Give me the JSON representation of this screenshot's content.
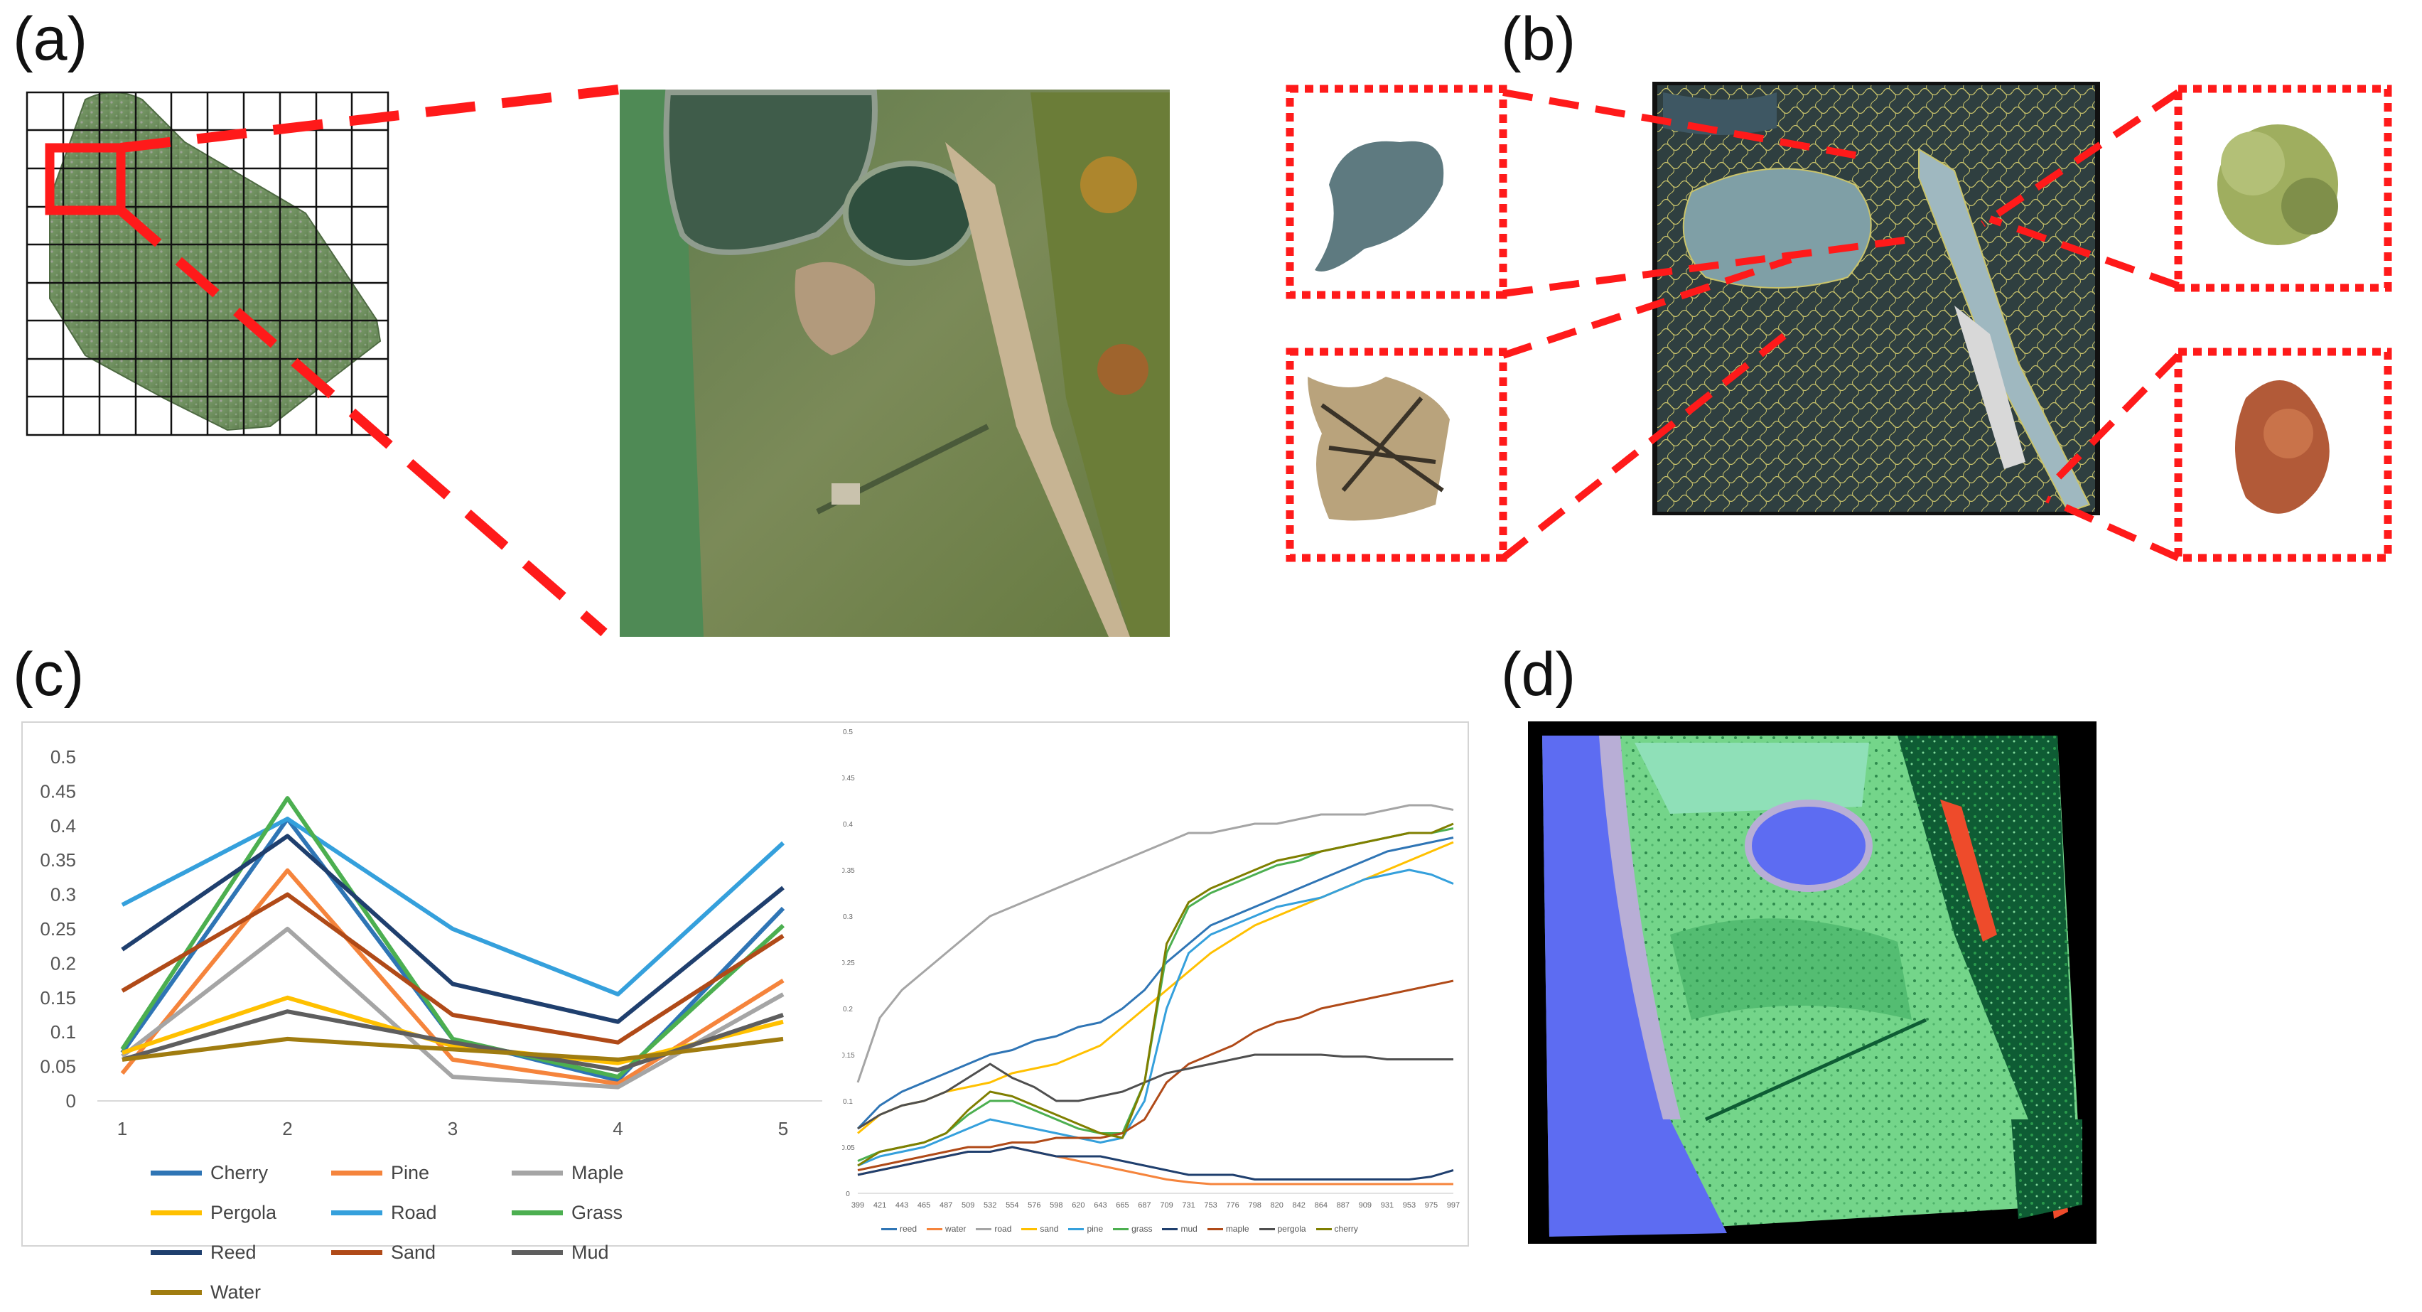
{
  "panels": {
    "a": {
      "label": "(a)"
    },
    "b": {
      "label": "(b)"
    },
    "c": {
      "label": "(c)"
    },
    "d": {
      "label": "(d)"
    }
  },
  "colors": {
    "callout_red": "#ff1a1a",
    "water_blue": "#5d6cf2",
    "grass_light": "#74d58a",
    "grass_dark": "#0e5c34",
    "road_lavender": "#b8aed6",
    "sand_orange": "#ee4b2b"
  },
  "chart_data": [
    {
      "type": "line",
      "categories": [
        "1",
        "2",
        "3",
        "4",
        "5"
      ],
      "ylim": [
        0,
        0.5
      ],
      "yticks": [
        "0",
        "0.05",
        "0.1",
        "0.15",
        "0.2",
        "0.25",
        "0.3",
        "0.35",
        "0.4",
        "0.45",
        "0.5"
      ],
      "legend_position": "bottom",
      "series": [
        {
          "name": "Cherry",
          "color": "#2f75b5",
          "values": [
            0.07,
            0.41,
            0.09,
            0.03,
            0.28
          ]
        },
        {
          "name": "Pine",
          "color": "#f5843c",
          "values": [
            0.04,
            0.335,
            0.06,
            0.025,
            0.175
          ]
        },
        {
          "name": "Maple",
          "color": "#a5a5a5",
          "values": [
            0.065,
            0.25,
            0.035,
            0.02,
            0.155
          ]
        },
        {
          "name": "Pergola",
          "color": "#ffc000",
          "values": [
            0.07,
            0.15,
            0.08,
            0.055,
            0.115
          ]
        },
        {
          "name": "Road",
          "color": "#35a0dc",
          "values": [
            0.285,
            0.41,
            0.25,
            0.155,
            0.375
          ]
        },
        {
          "name": "Grass",
          "color": "#4caf50",
          "values": [
            0.075,
            0.44,
            0.09,
            0.035,
            0.255
          ]
        },
        {
          "name": "Reed",
          "color": "#1f3f6e",
          "values": [
            0.22,
            0.385,
            0.17,
            0.115,
            0.31
          ]
        },
        {
          "name": "Sand",
          "color": "#b04a18",
          "values": [
            0.16,
            0.3,
            0.125,
            0.085,
            0.24
          ]
        },
        {
          "name": "Mud",
          "color": "#5e5e5e",
          "values": [
            0.06,
            0.13,
            0.085,
            0.045,
            0.125
          ]
        },
        {
          "name": "Water",
          "color": "#a07c10",
          "values": [
            0.06,
            0.09,
            0.075,
            0.06,
            0.09
          ]
        }
      ]
    },
    {
      "type": "line",
      "x": [
        "399",
        "421",
        "443",
        "465",
        "487",
        "509",
        "532",
        "554",
        "576",
        "598",
        "620",
        "643",
        "665",
        "687",
        "709",
        "731",
        "753",
        "776",
        "798",
        "820",
        "842",
        "864",
        "887",
        "909",
        "931",
        "953",
        "975",
        "997"
      ],
      "ylim": [
        0,
        0.5
      ],
      "yticks": [
        "0",
        "0.05",
        "0.1",
        "0.15",
        "0.2",
        "0.25",
        "0.3",
        "0.35",
        "0.4",
        "0.45",
        "0.5"
      ],
      "legend_position": "bottom",
      "series": [
        {
          "name": "reed",
          "color": "#2f75b5",
          "values": [
            0.07,
            0.095,
            0.11,
            0.12,
            0.13,
            0.14,
            0.15,
            0.155,
            0.165,
            0.17,
            0.18,
            0.185,
            0.2,
            0.22,
            0.25,
            0.27,
            0.29,
            0.3,
            0.31,
            0.32,
            0.33,
            0.34,
            0.35,
            0.36,
            0.37,
            0.375,
            0.38,
            0.385
          ]
        },
        {
          "name": "water",
          "color": "#f5843c",
          "values": [
            0.02,
            0.025,
            0.03,
            0.035,
            0.04,
            0.045,
            0.045,
            0.05,
            0.045,
            0.04,
            0.035,
            0.03,
            0.025,
            0.02,
            0.015,
            0.012,
            0.01,
            0.01,
            0.01,
            0.01,
            0.01,
            0.01,
            0.01,
            0.01,
            0.01,
            0.01,
            0.01,
            0.01
          ]
        },
        {
          "name": "road",
          "color": "#a5a5a5",
          "values": [
            0.12,
            0.19,
            0.22,
            0.24,
            0.26,
            0.28,
            0.3,
            0.31,
            0.32,
            0.33,
            0.34,
            0.35,
            0.36,
            0.37,
            0.38,
            0.39,
            0.39,
            0.395,
            0.4,
            0.4,
            0.405,
            0.41,
            0.41,
            0.41,
            0.415,
            0.42,
            0.42,
            0.415
          ]
        },
        {
          "name": "sand",
          "color": "#ffc000",
          "values": [
            0.065,
            0.085,
            0.095,
            0.1,
            0.11,
            0.115,
            0.12,
            0.13,
            0.135,
            0.14,
            0.15,
            0.16,
            0.18,
            0.2,
            0.22,
            0.24,
            0.26,
            0.275,
            0.29,
            0.3,
            0.31,
            0.32,
            0.33,
            0.34,
            0.35,
            0.36,
            0.37,
            0.38
          ]
        },
        {
          "name": "pine",
          "color": "#35a0dc",
          "values": [
            0.03,
            0.04,
            0.045,
            0.05,
            0.06,
            0.07,
            0.08,
            0.075,
            0.07,
            0.065,
            0.06,
            0.055,
            0.06,
            0.1,
            0.2,
            0.26,
            0.28,
            0.29,
            0.3,
            0.31,
            0.315,
            0.32,
            0.33,
            0.34,
            0.345,
            0.35,
            0.345,
            0.335
          ]
        },
        {
          "name": "grass",
          "color": "#4caf50",
          "values": [
            0.035,
            0.045,
            0.05,
            0.055,
            0.065,
            0.085,
            0.1,
            0.1,
            0.09,
            0.08,
            0.07,
            0.065,
            0.065,
            0.12,
            0.26,
            0.31,
            0.325,
            0.335,
            0.345,
            0.355,
            0.36,
            0.37,
            0.375,
            0.38,
            0.385,
            0.39,
            0.39,
            0.395
          ]
        },
        {
          "name": "mud",
          "color": "#1f3f6e",
          "values": [
            0.02,
            0.025,
            0.03,
            0.035,
            0.04,
            0.045,
            0.045,
            0.05,
            0.045,
            0.04,
            0.04,
            0.04,
            0.035,
            0.03,
            0.025,
            0.02,
            0.02,
            0.02,
            0.015,
            0.015,
            0.015,
            0.015,
            0.015,
            0.015,
            0.015,
            0.015,
            0.018,
            0.025
          ]
        },
        {
          "name": "maple",
          "color": "#b04a18",
          "values": [
            0.025,
            0.03,
            0.035,
            0.04,
            0.045,
            0.05,
            0.05,
            0.055,
            0.055,
            0.06,
            0.06,
            0.06,
            0.065,
            0.08,
            0.12,
            0.14,
            0.15,
            0.16,
            0.175,
            0.185,
            0.19,
            0.2,
            0.205,
            0.21,
            0.215,
            0.22,
            0.225,
            0.23
          ]
        },
        {
          "name": "pergola",
          "color": "#4f4f4f",
          "values": [
            0.07,
            0.085,
            0.095,
            0.1,
            0.11,
            0.125,
            0.14,
            0.125,
            0.115,
            0.1,
            0.1,
            0.105,
            0.11,
            0.12,
            0.13,
            0.135,
            0.14,
            0.145,
            0.15,
            0.15,
            0.15,
            0.15,
            0.148,
            0.148,
            0.145,
            0.145,
            0.145,
            0.145
          ]
        },
        {
          "name": "cherry",
          "color": "#7f7f00",
          "values": [
            0.03,
            0.045,
            0.05,
            0.055,
            0.065,
            0.09,
            0.11,
            0.105,
            0.095,
            0.085,
            0.075,
            0.065,
            0.06,
            0.12,
            0.27,
            0.315,
            0.33,
            0.34,
            0.35,
            0.36,
            0.365,
            0.37,
            0.375,
            0.38,
            0.385,
            0.39,
            0.39,
            0.4
          ]
        }
      ]
    }
  ]
}
